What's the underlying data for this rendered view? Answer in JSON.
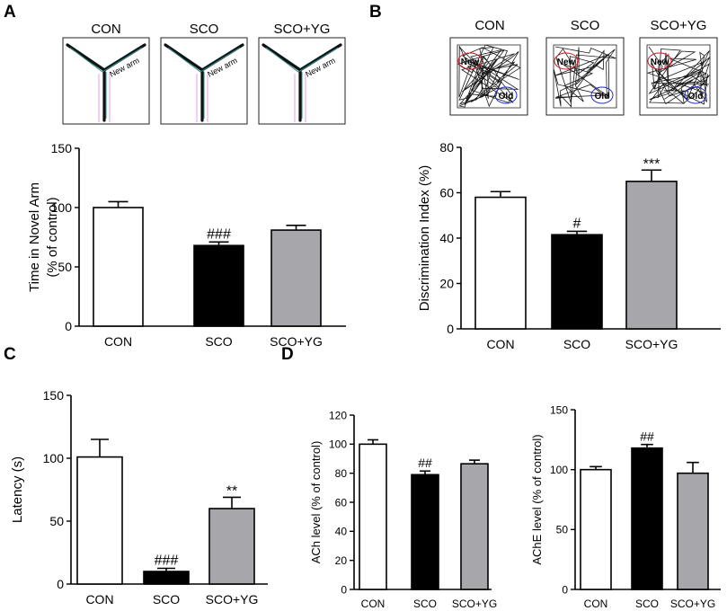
{
  "colors": {
    "con": "#ffffff",
    "sco": "#000000",
    "scoyg": "#a7a6ab",
    "red": "#e0141e",
    "blue": "#1e2adc",
    "axis": "#000000",
    "track": "#111111"
  },
  "panel_labels": {
    "a": "A",
    "b": "B",
    "c": "C",
    "d": "D"
  },
  "ymaze": {
    "group_labels": [
      "CON",
      "SCO",
      "SCO+YG"
    ],
    "arm_label": "New arm"
  },
  "object_recognition": {
    "group_labels": [
      "CON",
      "SCO",
      "SCO+YG"
    ],
    "new_label": "New",
    "old_label": "Old"
  },
  "chart_data": [
    {
      "id": "A",
      "type": "bar",
      "categories": [
        "CON",
        "SCO",
        "SCO+YG"
      ],
      "values": [
        100,
        68,
        81
      ],
      "errors": [
        5,
        3,
        4
      ],
      "annotations": [
        "",
        "###",
        ""
      ],
      "title": "",
      "xlabel": "",
      "ylabel": "Time in Novel Arm",
      "ylabel2": "(% of control)",
      "ylim": [
        0,
        150
      ],
      "yticks": [
        0,
        50,
        100,
        150
      ],
      "grid": false
    },
    {
      "id": "B",
      "type": "bar",
      "categories": [
        "CON",
        "SCO",
        "SCO+YG"
      ],
      "values": [
        58,
        41.5,
        65
      ],
      "errors": [
        2.5,
        1.5,
        5
      ],
      "annotations": [
        "",
        "#",
        "***"
      ],
      "title": "",
      "xlabel": "",
      "ylabel": "Discrimination Index (%)",
      "ylim": [
        0,
        80
      ],
      "yticks": [
        0,
        20,
        40,
        60,
        80
      ],
      "grid": false
    },
    {
      "id": "C",
      "type": "bar",
      "categories": [
        "CON",
        "SCO",
        "SCO+YG"
      ],
      "values": [
        101,
        10,
        60
      ],
      "errors": [
        14,
        2.5,
        9
      ],
      "annotations": [
        "",
        "###",
        "**"
      ],
      "title": "",
      "xlabel": "",
      "ylabel": "Latency (s)",
      "ylim": [
        0,
        150
      ],
      "yticks": [
        0,
        50,
        100,
        150
      ],
      "grid": false
    },
    {
      "id": "D1",
      "type": "bar",
      "categories": [
        "CON",
        "SCO",
        "SCO+YG"
      ],
      "values": [
        100,
        79,
        86.5
      ],
      "errors": [
        3,
        2.5,
        2.5
      ],
      "annotations": [
        "",
        "##",
        ""
      ],
      "title": "",
      "xlabel": "",
      "ylabel": "ACh level (% of control)",
      "ylim": [
        0,
        120
      ],
      "yticks": [
        0,
        20,
        40,
        60,
        80,
        100,
        120
      ],
      "grid": false
    },
    {
      "id": "D2",
      "type": "bar",
      "categories": [
        "CON",
        "SCO",
        "SCO+YG"
      ],
      "values": [
        100,
        118,
        97
      ],
      "errors": [
        2.5,
        3,
        9
      ],
      "annotations": [
        "",
        "##",
        ""
      ],
      "title": "",
      "xlabel": "",
      "ylabel": "AChE level (% of control)",
      "ylim": [
        0,
        150
      ],
      "yticks": [
        0,
        50,
        100,
        150
      ],
      "grid": false
    }
  ]
}
